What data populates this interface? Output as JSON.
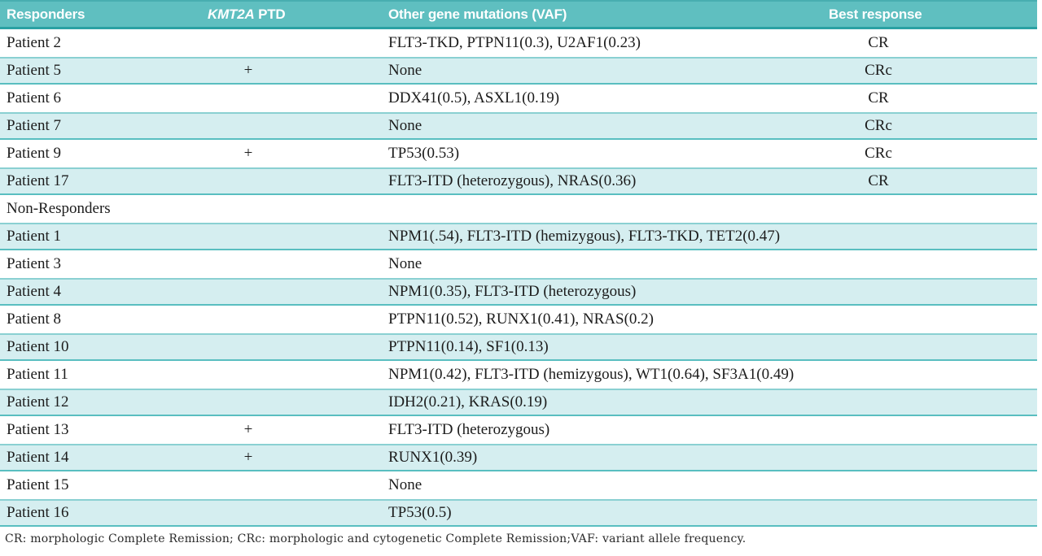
{
  "header": {
    "col1": "Responders",
    "col2_italic": "KMT2A",
    "col2_rest": " PTD",
    "col3": "Other gene mutations (VAF)",
    "col4": "Best response"
  },
  "rows": [
    {
      "type": "data",
      "patient": "Patient 2",
      "ptd": "",
      "mutations": "FLT3-TKD, PTPN11(0.3), U2AF1(0.23)",
      "response": "CR",
      "shaded": false
    },
    {
      "type": "data",
      "patient": "Patient 5",
      "ptd": "+",
      "mutations": "None",
      "response": "CRc",
      "shaded": true
    },
    {
      "type": "data",
      "patient": "Patient 6",
      "ptd": "",
      "mutations": "DDX41(0.5), ASXL1(0.19)",
      "response": "CR",
      "shaded": false
    },
    {
      "type": "data",
      "patient": "Patient 7",
      "ptd": "",
      "mutations": "None",
      "response": "CRc",
      "shaded": true
    },
    {
      "type": "data",
      "patient": "Patient 9",
      "ptd": "+",
      "mutations": "TP53(0.53)",
      "response": "CRc",
      "shaded": false
    },
    {
      "type": "data",
      "patient": "Patient 17",
      "ptd": "",
      "mutations": "FLT3-ITD (heterozygous), NRAS(0.36)",
      "response": "CR",
      "shaded": true
    },
    {
      "type": "section",
      "patient": "Non-Responders",
      "ptd": "",
      "mutations": "",
      "response": "",
      "shaded": false
    },
    {
      "type": "data",
      "patient": "Patient 1",
      "ptd": "",
      "mutations": "NPM1(.54), FLT3-ITD (hemizygous), FLT3-TKD, TET2(0.47)",
      "response": "",
      "shaded": true
    },
    {
      "type": "data",
      "patient": "Patient 3",
      "ptd": "",
      "mutations": "None",
      "response": "",
      "shaded": false
    },
    {
      "type": "data",
      "patient": "Patient 4",
      "ptd": "",
      "mutations": "NPM1(0.35), FLT3-ITD (heterozygous)",
      "response": "",
      "shaded": true
    },
    {
      "type": "data",
      "patient": "Patient 8",
      "ptd": "",
      "mutations": "PTPN11(0.52), RUNX1(0.41), NRAS(0.2)",
      "response": "",
      "shaded": false
    },
    {
      "type": "data",
      "patient": "Patient 10",
      "ptd": "",
      "mutations": "PTPN11(0.14), SF1(0.13)",
      "response": "",
      "shaded": true
    },
    {
      "type": "data",
      "patient": "Patient 11",
      "ptd": "",
      "mutations": "NPM1(0.42), FLT3-ITD (hemizygous), WT1(0.64), SF3A1(0.49)",
      "response": "",
      "shaded": false
    },
    {
      "type": "data",
      "patient": "Patient 12",
      "ptd": "",
      "mutations": "IDH2(0.21), KRAS(0.19)",
      "response": "",
      "shaded": true
    },
    {
      "type": "data",
      "patient": "Patient 13",
      "ptd": "+",
      "mutations": "FLT3-ITD (heterozygous)",
      "response": "",
      "shaded": false
    },
    {
      "type": "data",
      "patient": "Patient 14",
      "ptd": "+",
      "mutations": "RUNX1(0.39)",
      "response": "",
      "shaded": true
    },
    {
      "type": "data",
      "patient": "Patient 15",
      "ptd": "",
      "mutations": "None",
      "response": "",
      "shaded": false
    },
    {
      "type": "data",
      "patient": "Patient 16",
      "ptd": "",
      "mutations": "TP53(0.5)",
      "response": "",
      "shaded": true
    }
  ],
  "footnote": "CR: morphologic Complete Remission; CRc: morphologic and cytogenetic Complete Remission;VAF: variant allele frequency.",
  "colors": {
    "header_bg": "#5fbfc0",
    "header_border_top": "#48aeb0",
    "header_border_bottom": "#2aa1a3",
    "shaded_row_bg": "#d5eef0",
    "shaded_row_border_top": "#8ad0d2",
    "shaded_row_border_bottom": "#59bec0",
    "body_text": "#1c1c1c"
  }
}
